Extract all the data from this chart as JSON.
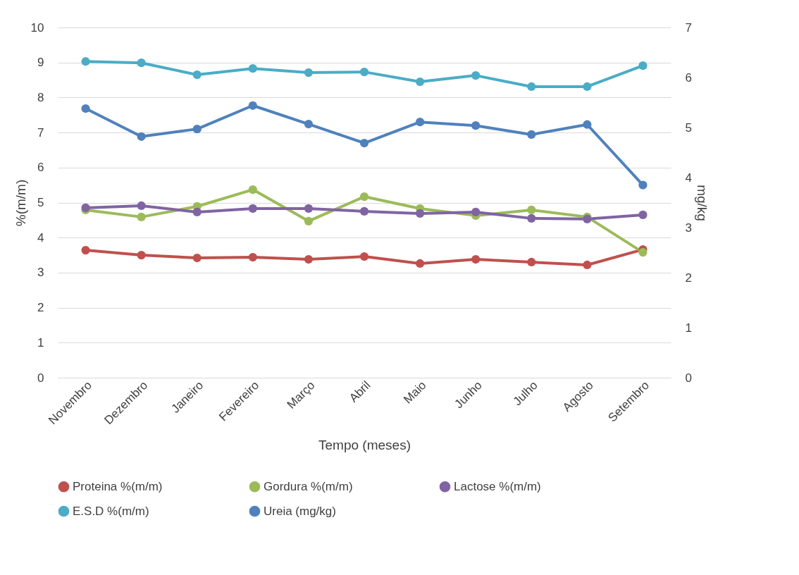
{
  "chart_data": {
    "type": "line",
    "xlabel": "Tempo (meses)",
    "ylabel": "%(m/m)",
    "y2label": "mg/kg",
    "categories": [
      "Novembro",
      "Dezembro",
      "Janeiro",
      "Fevereiro",
      "Março",
      "Abril",
      "Maio",
      "Junho",
      "Julho",
      "Agosto",
      "Setembro"
    ],
    "series": [
      {
        "name": "Proteina %(m/m)",
        "color": "#c0504d",
        "values": [
          3.64,
          3.5,
          3.42,
          3.44,
          3.38,
          3.46,
          3.26,
          3.38,
          3.3,
          3.22,
          3.66
        ]
      },
      {
        "name": "Gordura %(m/m)",
        "color": "#9bbb59",
        "values": [
          4.79,
          4.59,
          4.89,
          5.37,
          4.47,
          5.17,
          4.83,
          4.63,
          4.79,
          4.59,
          3.58
        ]
      },
      {
        "name": "Lactose %(m/m)",
        "color": "#8064a2",
        "values": [
          4.85,
          4.91,
          4.73,
          4.83,
          4.83,
          4.75,
          4.69,
          4.73,
          4.55,
          4.53,
          4.65
        ]
      },
      {
        "name": "E.S.D %(m/m)",
        "color": "#4bacc6",
        "values": [
          9.03,
          8.99,
          8.65,
          8.83,
          8.71,
          8.73,
          8.45,
          8.63,
          8.31,
          8.31,
          8.91
        ]
      },
      {
        "name": "Ureia (mg/kg)",
        "color": "#4f81bd",
        "axis": "y2",
        "values": [
          5.38,
          4.82,
          4.97,
          5.44,
          5.07,
          4.69,
          5.11,
          5.04,
          4.86,
          5.06,
          3.85
        ]
      }
    ],
    "ylim": [
      0,
      10
    ],
    "yticks": [
      0,
      1,
      2,
      3,
      4,
      5,
      6,
      7,
      8,
      9,
      10
    ],
    "y2lim": [
      0,
      7
    ],
    "y2ticks": [
      0,
      1,
      2,
      3,
      4,
      5,
      6,
      7
    ],
    "grid": "y",
    "legend": "bottom",
    "marker": "circle",
    "line_style": "solid"
  }
}
